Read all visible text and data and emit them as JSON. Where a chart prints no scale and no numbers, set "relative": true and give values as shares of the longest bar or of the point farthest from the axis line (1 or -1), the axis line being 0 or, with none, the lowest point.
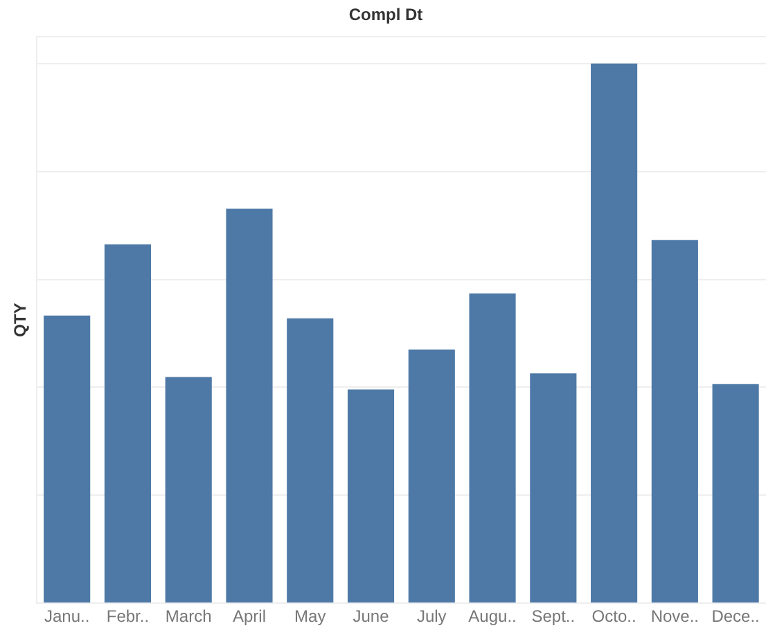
{
  "chart_data": {
    "type": "bar",
    "title": "Compl Dt",
    "ylabel": "QTY",
    "categories": [
      "Janu..",
      "Febr..",
      "March",
      "April",
      "May",
      "June",
      "July",
      "Augu..",
      "Sept..",
      "Octo..",
      "Nove..",
      "Dece.."
    ],
    "values": [
      0.533,
      0.665,
      0.419,
      0.731,
      0.528,
      0.396,
      0.47,
      0.574,
      0.426,
      1,
      0.673,
      0.406
    ],
    "color": "#4e79a7",
    "relative": true,
    "grid": "y"
  }
}
